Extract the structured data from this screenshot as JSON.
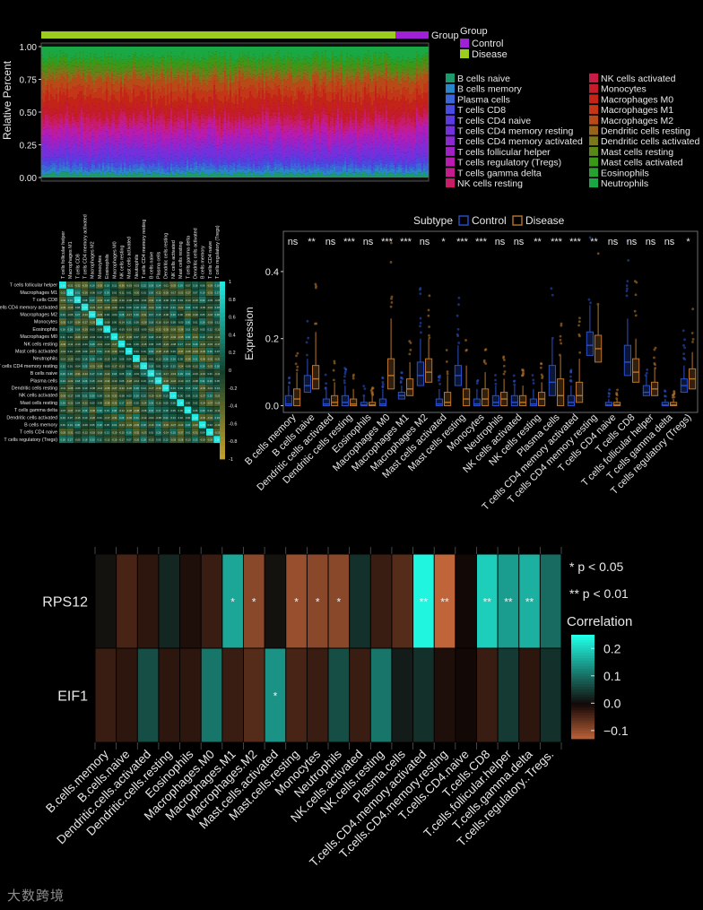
{
  "watermark": "大数跨境",
  "chart_data": [
    {
      "type": "area",
      "id": "stacked-relative-percent",
      "ylabel": "Relative Percent",
      "yticks": [
        "0.00",
        "0.25",
        "0.50",
        "0.75",
        "1.00"
      ],
      "ylim": [
        0,
        1
      ],
      "group_bar_label": "Group",
      "group_legend": {
        "title": "Group",
        "items": [
          {
            "label": "Control",
            "color": "#a020d8"
          },
          {
            "label": "Disease",
            "color": "#9ccc1c"
          }
        ],
        "control_fraction": 0.085
      },
      "cell_types": [
        {
          "label": "B cells naive",
          "color": "#1c9a6c"
        },
        {
          "label": "B cells memory",
          "color": "#2a86c8"
        },
        {
          "label": "Plasma cells",
          "color": "#3a66d8"
        },
        {
          "label": "T cells CD8",
          "color": "#4a4ae0"
        },
        {
          "label": "T cells CD4 naive",
          "color": "#5c3ae0"
        },
        {
          "label": "T cells CD4 memory resting",
          "color": "#7430dc"
        },
        {
          "label": "T cells CD4 memory activated",
          "color": "#8c28d0"
        },
        {
          "label": "T cells follicular helper",
          "color": "#a020c4"
        },
        {
          "label": "T cells regulatory (Tregs)",
          "color": "#b81cae"
        },
        {
          "label": "T cells gamma delta",
          "color": "#c41c8c"
        },
        {
          "label": "NK cells resting",
          "color": "#c81c66"
        },
        {
          "label": "NK cells activated",
          "color": "#c81c44"
        },
        {
          "label": "Monocytes",
          "color": "#c41c28"
        },
        {
          "label": "Macrophages M0",
          "color": "#c42418"
        },
        {
          "label": "Macrophages M1",
          "color": "#c43618"
        },
        {
          "label": "Macrophages M2",
          "color": "#b84a18"
        },
        {
          "label": "Dendritic cells resting",
          "color": "#9a6418"
        },
        {
          "label": "Dendritic cells activated",
          "color": "#7a7818"
        },
        {
          "label": "Mast cells resting",
          "color": "#5a8818"
        },
        {
          "label": "Mast cells activated",
          "color": "#3a9a18"
        },
        {
          "label": "Eosinophils",
          "color": "#28a030"
        },
        {
          "label": "Neutrophils",
          "color": "#1aa844"
        }
      ],
      "mean_fractions": [
        0.03,
        0.03,
        0.03,
        0.03,
        0.03,
        0.06,
        0.04,
        0.05,
        0.05,
        0.04,
        0.04,
        0.03,
        0.06,
        0.07,
        0.06,
        0.07,
        0.03,
        0.03,
        0.04,
        0.04,
        0.03,
        0.07
      ]
    },
    {
      "type": "heatmap",
      "id": "cell-correlation-matrix",
      "labels": [
        "T cells follicular helper",
        "Macrophages M1",
        "T cells CD8",
        "T cells CD4 memory activated",
        "Macrophages M2",
        "Monocytes",
        "Eosinophils",
        "Macrophages M0",
        "NK cells resting",
        "Mast cells activated",
        "Neutrophils",
        "T cells CD4 memory resting",
        "B cells naive",
        "Plasma cells",
        "Dendritic cells resting",
        "NK cells activated",
        "Mast cells resting",
        "T cells gamma delta",
        "Dendritic cells activated",
        "B cells memory",
        "T cells CD4 naive",
        "T cells regulatory (Tregs)"
      ],
      "colorbar_ticks": [
        "1",
        "0.8",
        "0.6",
        "0.4",
        "0.2",
        "0",
        "-0.2",
        "-0.4",
        "-0.6",
        "-0.8",
        "-1"
      ],
      "colorbar_range": [
        -1,
        1
      ]
    },
    {
      "type": "box",
      "id": "expression-boxplot",
      "legend_title": "Subtype",
      "series": [
        {
          "name": "Control",
          "color": "#2a50c8"
        },
        {
          "name": "Disease",
          "color": "#b8742a"
        }
      ],
      "ylabel": "Expression",
      "yticks": [
        "0.0",
        "0.2",
        "0.4"
      ],
      "ylim": [
        -0.02,
        0.52
      ],
      "categories": [
        "B cells memory",
        "B cells naive",
        "Dendritic cells activated",
        "Dendritic cells resting",
        "Eosinophils",
        "Macrophages M0",
        "Macrophages M1",
        "Macrophages M2",
        "Mast cells activated",
        "Mast cells resting",
        "Monocytes",
        "Neutrophils",
        "NK cells activated",
        "NK cells resting",
        "Plasma cells",
        "T cells CD4 memory activated",
        "T cells CD4 memory resting",
        "T cells CD4 naive",
        "T cells CD8",
        "T cells follicular helper",
        "T cells gamma delta",
        "T cells regulatory (Tregs)"
      ],
      "significance": [
        "ns",
        "**",
        "ns",
        "***",
        "ns",
        "***",
        "***",
        "ns",
        "*",
        "***",
        "***",
        "ns",
        "ns",
        "**",
        "***",
        "***",
        "**",
        "ns",
        "ns",
        "ns",
        "ns",
        "*"
      ],
      "control_median": [
        0.005,
        0.06,
        0.005,
        0.01,
        0.002,
        0.005,
        0.03,
        0.09,
        0.005,
        0.09,
        0.005,
        0.01,
        0.01,
        0.005,
        0.07,
        0.01,
        0.18,
        0.002,
        0.13,
        0.04,
        0.002,
        0.06
      ],
      "control_q1": [
        0.0,
        0.04,
        0.0,
        0.0,
        0.0,
        0.0,
        0.02,
        0.06,
        0.0,
        0.06,
        0.0,
        0.0,
        0.0,
        0.0,
        0.03,
        0.0,
        0.15,
        0.0,
        0.09,
        0.03,
        0.0,
        0.04
      ],
      "control_q3": [
        0.03,
        0.09,
        0.02,
        0.03,
        0.01,
        0.02,
        0.04,
        0.13,
        0.02,
        0.12,
        0.02,
        0.03,
        0.03,
        0.02,
        0.12,
        0.03,
        0.22,
        0.01,
        0.18,
        0.06,
        0.01,
        0.08
      ],
      "control_max": [
        0.06,
        0.14,
        0.05,
        0.06,
        0.03,
        0.05,
        0.06,
        0.2,
        0.05,
        0.18,
        0.05,
        0.06,
        0.06,
        0.05,
        0.2,
        0.06,
        0.3,
        0.02,
        0.26,
        0.09,
        0.02,
        0.12
      ],
      "disease_median": [
        0.02,
        0.08,
        0.01,
        0.005,
        0.002,
        0.09,
        0.05,
        0.1,
        0.01,
        0.02,
        0.02,
        0.02,
        0.01,
        0.02,
        0.03,
        0.03,
        0.17,
        0.002,
        0.1,
        0.05,
        0.002,
        0.08
      ],
      "disease_q1": [
        0.0,
        0.05,
        0.0,
        0.0,
        0.0,
        0.05,
        0.03,
        0.07,
        0.0,
        0.0,
        0.0,
        0.0,
        0.0,
        0.0,
        0.0,
        0.01,
        0.13,
        0.0,
        0.07,
        0.03,
        0.0,
        0.05
      ],
      "disease_q3": [
        0.05,
        0.12,
        0.03,
        0.02,
        0.01,
        0.14,
        0.08,
        0.14,
        0.04,
        0.05,
        0.05,
        0.04,
        0.03,
        0.04,
        0.08,
        0.07,
        0.21,
        0.01,
        0.14,
        0.07,
        0.01,
        0.11
      ],
      "disease_max": [
        0.1,
        0.22,
        0.07,
        0.05,
        0.03,
        0.26,
        0.13,
        0.2,
        0.09,
        0.12,
        0.1,
        0.08,
        0.06,
        0.07,
        0.15,
        0.14,
        0.3,
        0.02,
        0.2,
        0.11,
        0.02,
        0.16
      ]
    },
    {
      "type": "heatmap",
      "id": "gene-cell-correlation",
      "rows": [
        "RPS12",
        "EIF1"
      ],
      "columns": [
        "B.cells.memory",
        "B.cells.naive",
        "Dendritic.cells.activated",
        "Dendritic.cells.resting",
        "Eosinophils",
        "Macrophages.M0",
        "Macrophages.M1",
        "Macrophages.M2",
        "Mast.cells.activated",
        "Mast.cells.resting",
        "Monocytes",
        "Neutrophils",
        "NK.cells.activated",
        "NK.cells.resting",
        "Plasma.cells",
        "T.cells.CD4.memory.activated",
        "T.cells.CD4.memory.resting",
        "T.cells.CD4.naive",
        "T.cells.CD8",
        "T.cells.follicular.helper",
        "T.cells.gamma.delta",
        "T.cells.regulatory..Tregs."
      ],
      "values": [
        [
          0.01,
          -0.04,
          -0.02,
          0.03,
          -0.01,
          -0.03,
          0.16,
          -0.09,
          0.01,
          -0.1,
          -0.09,
          -0.09,
          0.04,
          -0.03,
          -0.05,
          0.24,
          -0.13,
          0.0,
          0.2,
          0.15,
          0.17,
          0.1
        ],
        [
          -0.03,
          -0.02,
          0.07,
          -0.02,
          -0.02,
          0.11,
          -0.03,
          -0.05,
          0.14,
          -0.04,
          -0.03,
          0.07,
          -0.03,
          0.11,
          0.02,
          0.04,
          -0.01,
          0.0,
          -0.03,
          0.05,
          -0.02,
          0.04
        ]
      ],
      "significance": [
        [
          "",
          "",
          "",
          "",
          "",
          "",
          "*",
          "*",
          "",
          "*",
          "*",
          "*",
          "",
          "",
          "",
          "**",
          "**",
          "",
          "**",
          "**",
          "**",
          ""
        ],
        [
          "",
          "",
          "",
          "",
          "",
          "",
          "",
          "",
          "*",
          "",
          "",
          "",
          "",
          "",
          "",
          "",
          "",
          "",
          "",
          "",
          "",
          ""
        ]
      ],
      "sig_legend": [
        "* p < 0.05",
        "** p < 0.01"
      ],
      "colorbar_title": "Correlation",
      "colorbar_ticks": [
        {
          "label": "0.2",
          "value": 0.2
        },
        {
          "label": "0.1",
          "value": 0.1
        },
        {
          "label": "0.0",
          "value": 0.0
        },
        {
          "label": "−0.1",
          "value": -0.1
        }
      ],
      "range": [
        -0.13,
        0.25
      ]
    }
  ]
}
